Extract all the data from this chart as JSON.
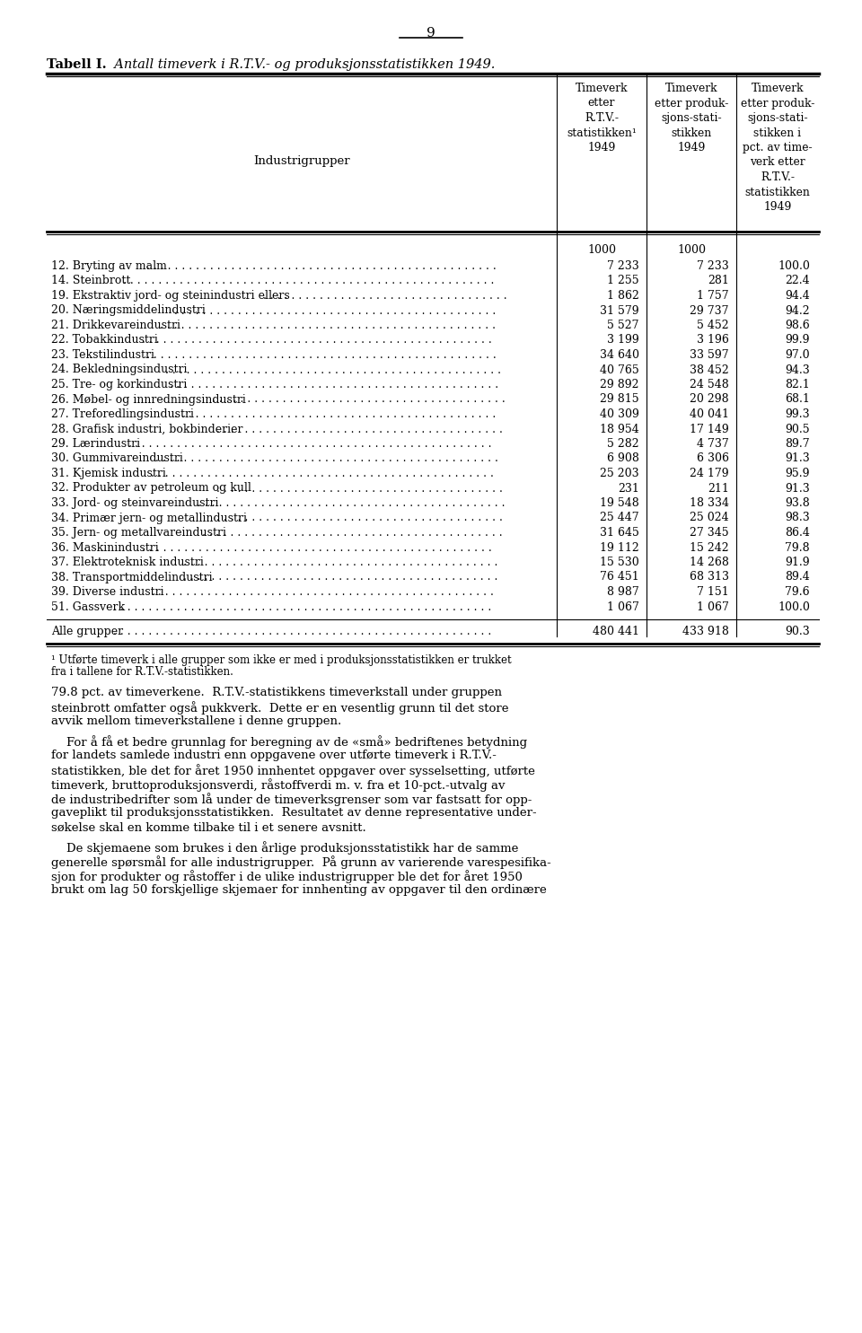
{
  "page_number": "9",
  "table_title_bold": "Tabell I.",
  "table_title_italic": "  Antall timeverk i R.T.V.- og produksjonsstatistikken 1949.",
  "col2_header": "Timeverk\netter\nR.T.V.-\nstatistikken¹\n1949",
  "col3_header": "Timeverk\netter produk-\nsjons­stati-\nstikken\n1949",
  "col4_header": "Timeverk\netter produk-\nsjons­stati-\nstikken i\npct. av time-\nverk etter\nR.T.V.-\nstatistikken\n1949",
  "rows": [
    [
      "12. Bryting av malm",
      "7 233",
      "7 233",
      "100.0"
    ],
    [
      "14. Steinbrott",
      "1 255",
      "281",
      "22.4"
    ],
    [
      "19. Ekstraktiv jord- og steinindustri ellers...",
      "1 862",
      "1 757",
      "94.4"
    ],
    [
      "20. Næringsmiddelindustri",
      "31 579",
      "29 737",
      "94.2"
    ],
    [
      "21. Drikkevareindustri",
      "5 527",
      "5 452",
      "98.6"
    ],
    [
      "22. Tobakkindustri",
      "3 199",
      "3 196",
      "99.9"
    ],
    [
      "23. Tekstilindustri",
      "34 640",
      "33 597",
      "97.0"
    ],
    [
      "24. Bekledningsindustri",
      "40 765",
      "38 452",
      "94.3"
    ],
    [
      "25. Tre- og korkindustri",
      "29 892",
      "24 548",
      "82.1"
    ],
    [
      "26. Møbel- og innredningsindustri",
      "29 815",
      "20 298",
      "68.1"
    ],
    [
      "27. Treforedlingsindustri",
      "40 309",
      "40 041",
      "99.3"
    ],
    [
      "28. Grafisk industri, bokbinderier",
      "18 954",
      "17 149",
      "90.5"
    ],
    [
      "29. Lærindustri",
      "5 282",
      "4 737",
      "89.7"
    ],
    [
      "30. Gummivareindustri",
      "6 908",
      "6 306",
      "91.3"
    ],
    [
      "31. Kjemisk industri",
      "25 203",
      "24 179",
      "95.9"
    ],
    [
      "32. Produkter av petroleum og kull",
      "231",
      "211",
      "91.3"
    ],
    [
      "33. Jord- og steinvareindustri",
      "19 548",
      "18 334",
      "93.8"
    ],
    [
      "34. Primær jern- og metallindustri",
      "25 447",
      "25 024",
      "98.3"
    ],
    [
      "35. Jern- og metallvareindustri",
      "31 645",
      "27 345",
      "86.4"
    ],
    [
      "36. Maskinindustri",
      "19 112",
      "15 242",
      "79.8"
    ],
    [
      "37. Elektroteknisk industri",
      "15 530",
      "14 268",
      "91.9"
    ],
    [
      "38. Transportmiddelindustri",
      "76 451",
      "68 313",
      "89.4"
    ],
    [
      "39. Diverse industri",
      "8 987",
      "7 151",
      "79.6"
    ],
    [
      "51. Gassverk",
      "1 067",
      "1 067",
      "100.0"
    ]
  ],
  "total_row": [
    "Alle grupper",
    "480 441",
    "433 918",
    "90.3"
  ],
  "footnote_line1": "¹ Utførte timeverk i alle grupper som ikke er med i produksjonsstatistikken er trukket",
  "footnote_line2": "fra i tallene for R.T.V.-statistikken.",
  "para1_lines": [
    "79.8 pct. av timeverkene.  R.T.V.-statistikkens timeverkstall under gruppen",
    "steinbrott omfatter også pukkverk.  Dette er en vesentlig grunn til det store",
    "avvik mellom timeverkstallene i denne gruppen."
  ],
  "para2_lines": [
    "    For å få et bedre grunnlag for beregning av de «små» bedriftenes betydning",
    "for landets samlede industri enn oppgavene over utførte timeverk i R.T.V.-",
    "statistikken, ble det for året 1950 innhentet oppgaver over sysselsetting, utførte",
    "timeverk, bruttoproduksjonsverdi, råstoffverdi m. v. fra et 10-pct.-utvalg av",
    "de industribedrifter som lå under de timeverksgrenser som var fastsatt for opp-",
    "gaveplikt til produksjonsstatistikken.  Resultatet av denne representative under-",
    "søkelse skal en komme tilbake til i et senere avsnitt."
  ],
  "para3_lines": [
    "    De skjemaene som brukes i den årlige produksjonsstatistikk har de samme",
    "generelle spørsmål for alle industrigrupper.  På grunn av varierende varespesifika-",
    "sjon for produkter og råstoffer i de ulike industrigrupper ble det for året 1950",
    "brukt om lag 50 forskjellige skjemaer for innhenting av oppgaver til den ordinære"
  ]
}
